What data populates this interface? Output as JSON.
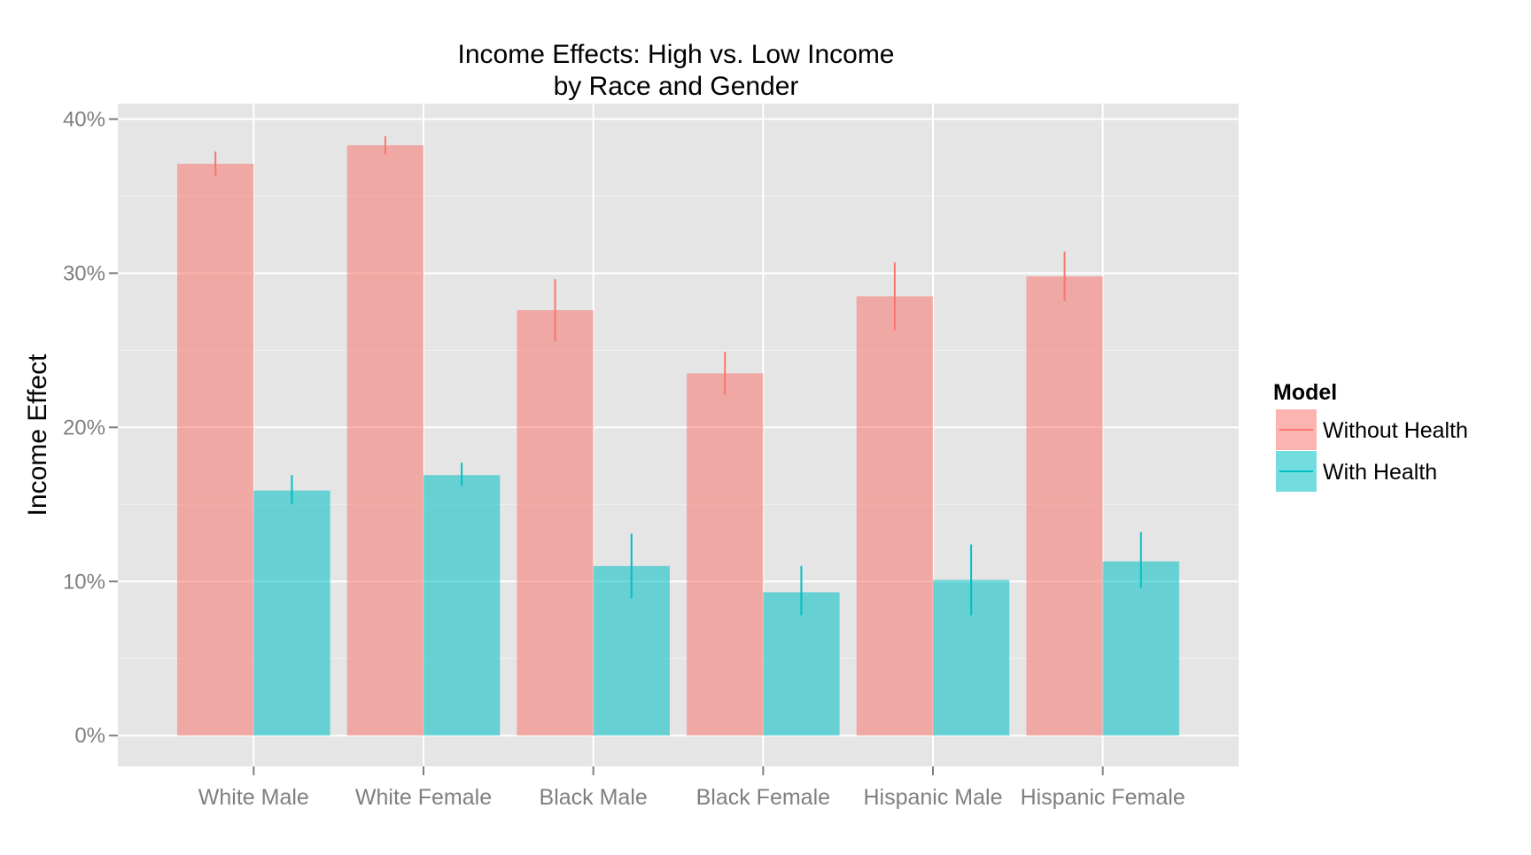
{
  "chart_data": {
    "type": "bar",
    "title": "Income Effects: High vs. Low Income",
    "subtitle": "by Race and Gender",
    "xlabel": "",
    "ylabel": "Income Effect",
    "ylim": [
      -0.02,
      0.41
    ],
    "yticks": [
      0,
      0.1,
      0.2,
      0.3,
      0.4
    ],
    "ytick_labels": [
      "0%",
      "10%",
      "20%",
      "30%",
      "40%"
    ],
    "grid": true,
    "legend_position": "right",
    "legend_title": "Model",
    "categories": [
      "White Male",
      "White Female",
      "Black Male",
      "Black Female",
      "Hispanic Male",
      "Hispanic Female"
    ],
    "series": [
      {
        "name": "Without Health",
        "color": "#F8766D",
        "values": [
          0.371,
          0.383,
          0.276,
          0.235,
          0.285,
          0.298
        ],
        "error_low": [
          0.363,
          0.377,
          0.256,
          0.221,
          0.263,
          0.282
        ],
        "error_high": [
          0.379,
          0.389,
          0.296,
          0.249,
          0.307,
          0.314
        ]
      },
      {
        "name": "With Health",
        "color": "#00BFC4",
        "values": [
          0.159,
          0.169,
          0.11,
          0.093,
          0.101,
          0.113
        ],
        "error_low": [
          0.15,
          0.162,
          0.089,
          0.078,
          0.078,
          0.096
        ],
        "error_high": [
          0.169,
          0.177,
          0.131,
          0.11,
          0.124,
          0.132
        ]
      }
    ]
  }
}
